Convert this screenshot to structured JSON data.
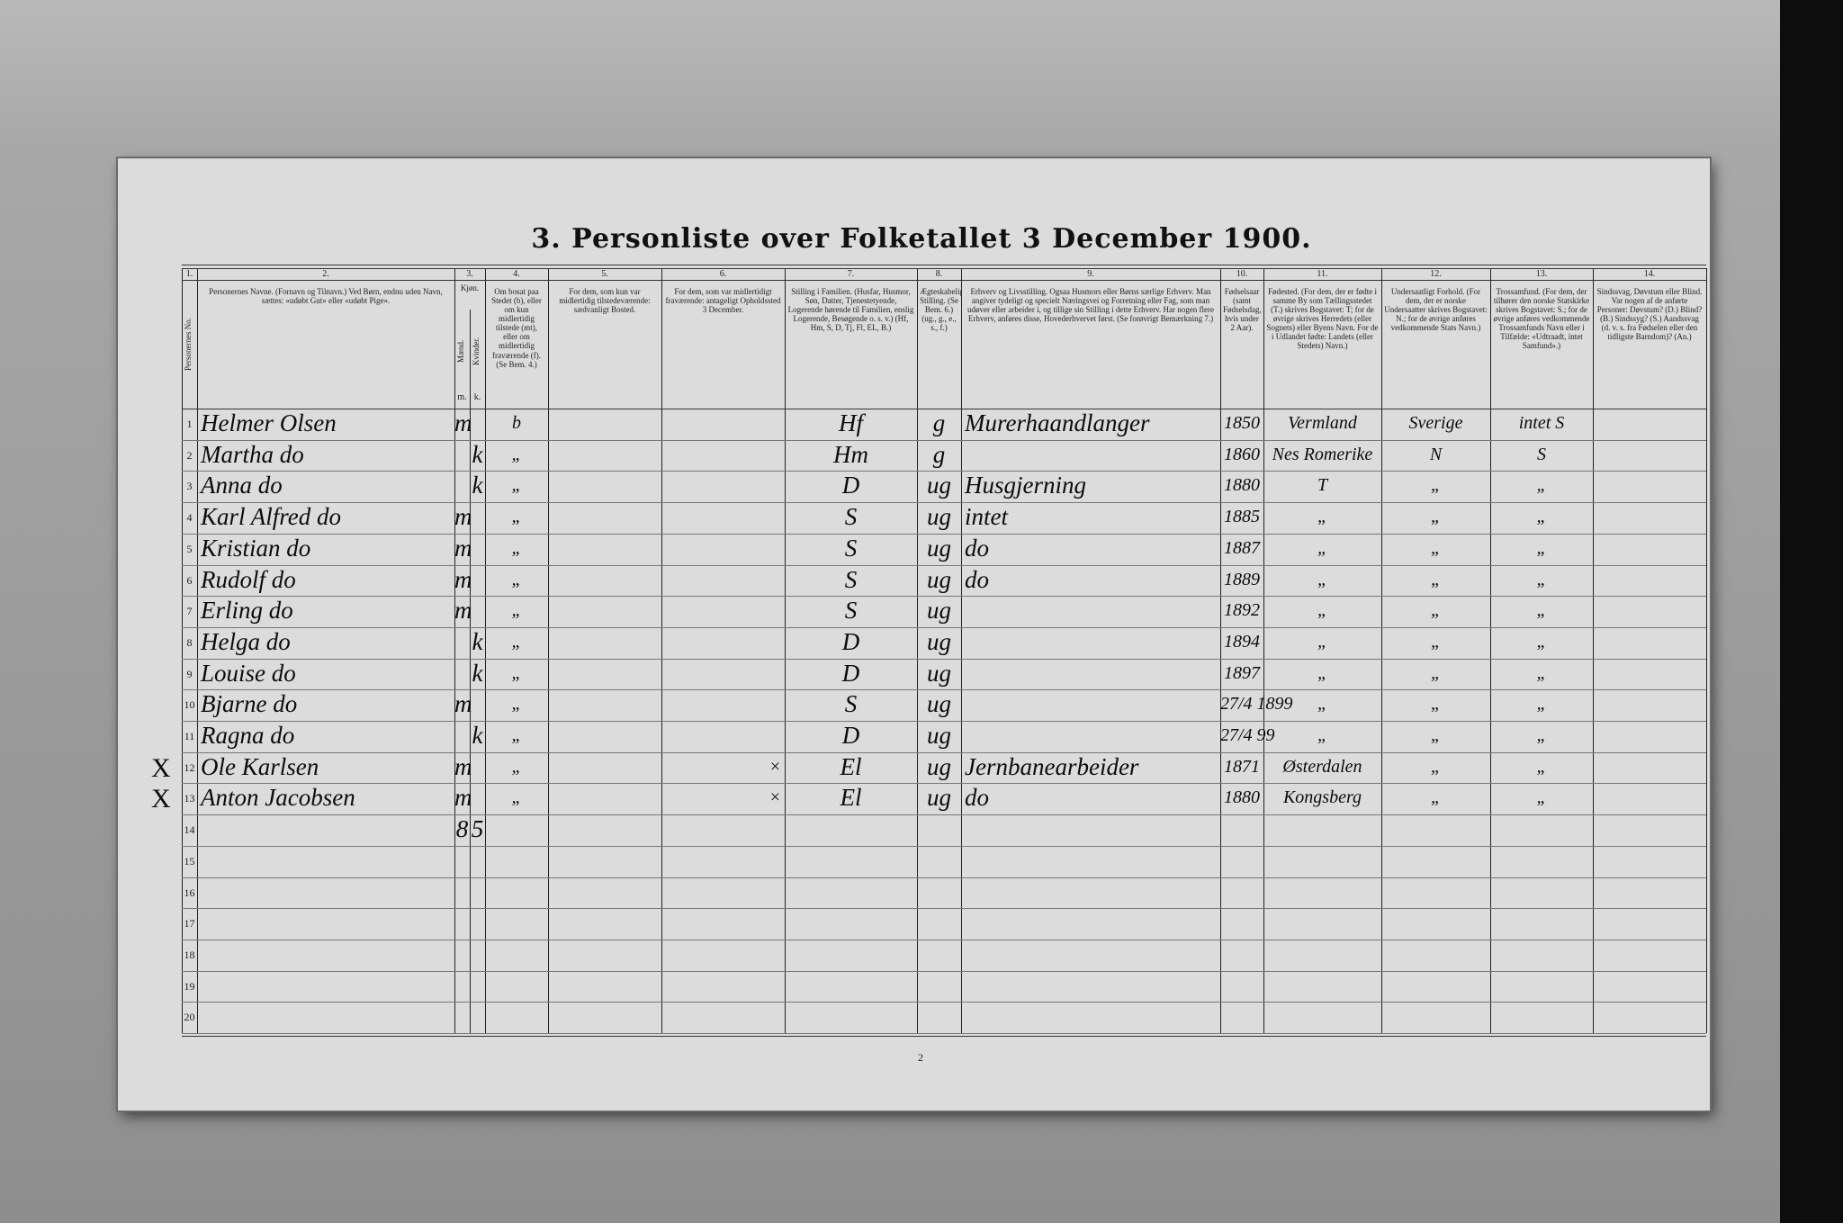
{
  "title": "3. Personliste over Folketallet 3 December 1900.",
  "page_number": "2",
  "columns": [
    {
      "num": "1.",
      "header": "Personernes No."
    },
    {
      "num": "2.",
      "header": "Personernes Navne. (Fornavn og Tilnavn.) Ved Børn, endnu uden Navn, sættes: «udøbt Gut» eller «udøbt Pige»."
    },
    {
      "num": "3.",
      "header": "Kjøn.",
      "sub": [
        {
          "label": "Mænd.",
          "short": "m."
        },
        {
          "label": "Kvinder.",
          "short": "k."
        }
      ]
    },
    {
      "num": "4.",
      "header": "Om bosat paa Stedet (b), eller om kun midlertidig tilstede (mt), eller om midlertidig fraværende (f). (Se Bem. 4.)"
    },
    {
      "num": "5.",
      "header": "For dem, som kun var midlertidig tilstedeværende: sædvanligt Bosted."
    },
    {
      "num": "6.",
      "header": "For dem, som var midlertidigt fraværende: antageligt Opholdssted 3 December."
    },
    {
      "num": "7.",
      "header": "Stilling i Familien. (Husfar, Husmor, Søn, Datter, Tjenestetyende, Logerende hørende til Familien, enslig Logerende, Besøgende o. s. v.) (Hf, Hm, S, D, Tj, Fl, EL, B.)"
    },
    {
      "num": "8.",
      "header": "Ægteskabelig Stilling. (Se Bem. 6.) (ug., g., e., s., f.)"
    },
    {
      "num": "9.",
      "header": "Erhverv og Livsstilling. Ogsaa Husmors eller Børns særlige Erhverv. Man angiver tydeligt og specielt Næringsvei og Forretning eller Fag, som man udøver eller arbeider i, og tillige sin Stilling i dette Erhverv. Har nogen flere Erhverv, anføres disse, Hovederhvervet først. (Se forøvrigt Bemærkning 7.)"
    },
    {
      "num": "10.",
      "header": "Fødselsaar (samt Fødselsdag, hvis under 2 Aar)."
    },
    {
      "num": "11.",
      "header": "Fødested. (For dem, der er fødte i samme By som Tællingsstedet (T.) skrives Bogstavet: T; for de øvrige skrives Herredets (eller Sognets) eller Byens Navn. For de i Udlandet fødte: Landets (eller Stedets) Navn.)"
    },
    {
      "num": "12.",
      "header": "Undersaatligt Forhold. (For dem, der er norske Undersaatter skrives Bogstavet: N.; for de øvrige anføres vedkommende Stats Navn.)"
    },
    {
      "num": "13.",
      "header": "Trossamfund. (For dem, der tilhører den norske Statskirke skrives Bogstavet: S.; for de øvrige anføres vedkommende Trossamfunds Navn eller i Tilfælde: «Udtraadt, intet Samfund».)"
    },
    {
      "num": "14.",
      "header": "Sindssvag, Døvstum eller Blind. Var nogen af de anførte Personer: Døvstum? (D.) Blind? (B.) Sindssyg? (S.) Aandssvag (d. v. s. fra Fødselen eller den tidligste Barndom)? (An.)"
    }
  ],
  "rows": [
    {
      "no": "1",
      "name": "Helmer Olsen",
      "m": "m",
      "res": "b",
      "fam": "Hf",
      "mar": "g",
      "occ": "Murerhaandlanger",
      "born": "1850",
      "birthplace": "Vermland",
      "nat": "Sverige",
      "faith": "intet S"
    },
    {
      "no": "2",
      "name": "Martha do",
      "k": "k",
      "res": "„",
      "fam": "Hm",
      "mar": "g",
      "born": "1860",
      "birthplace": "Nes Romerike",
      "nat": "N",
      "faith": "S"
    },
    {
      "no": "3",
      "name": "Anna do",
      "k": "k",
      "res": "„",
      "fam": "D",
      "mar": "ug",
      "occ": "Husgjerning",
      "born": "1880",
      "birthplace": "T",
      "nat": "„",
      "faith": "„"
    },
    {
      "no": "4",
      "name": "Karl Alfred do",
      "m": "m",
      "res": "„",
      "fam": "S",
      "mar": "ug",
      "occ": "intet",
      "born": "1885",
      "birthplace": "„",
      "nat": "„",
      "faith": "„"
    },
    {
      "no": "5",
      "name": "Kristian do",
      "m": "m",
      "res": "„",
      "fam": "S",
      "mar": "ug",
      "occ": "do",
      "born": "1887",
      "birthplace": "„",
      "nat": "„",
      "faith": "„"
    },
    {
      "no": "6",
      "name": "Rudolf do",
      "m": "m",
      "res": "„",
      "fam": "S",
      "mar": "ug",
      "occ": "do",
      "born": "1889",
      "birthplace": "„",
      "nat": "„",
      "faith": "„"
    },
    {
      "no": "7",
      "name": "Erling do",
      "m": "m",
      "res": "„",
      "fam": "S",
      "mar": "ug",
      "born": "1892",
      "birthplace": "„",
      "nat": "„",
      "faith": "„"
    },
    {
      "no": "8",
      "name": "Helga do",
      "k": "k",
      "res": "„",
      "fam": "D",
      "mar": "ug",
      "born": "1894",
      "birthplace": "„",
      "nat": "„",
      "faith": "„"
    },
    {
      "no": "9",
      "name": "Louise do",
      "k": "k",
      "res": "„",
      "fam": "D",
      "mar": "ug",
      "born": "1897",
      "birthplace": "„",
      "nat": "„",
      "faith": "„"
    },
    {
      "no": "10",
      "name": "Bjarne do",
      "m": "m",
      "res": "„",
      "fam": "S",
      "mar": "ug",
      "born": "27/4 1899",
      "birthplace": "„",
      "nat": "„",
      "faith": "„"
    },
    {
      "no": "11",
      "name": "Ragna do",
      "k": "k",
      "res": "„",
      "fam": "D",
      "mar": "ug",
      "born": "27/4 99",
      "birthplace": "„",
      "nat": "„",
      "faith": "„"
    },
    {
      "no": "12",
      "margin": "X",
      "name": "Ole Karlsen",
      "m": "m",
      "res": "„",
      "c6": "×",
      "fam": "El",
      "mar": "ug",
      "occ": "Jernbanearbeider",
      "born": "1871",
      "birthplace": "Østerdalen",
      "nat": "„",
      "faith": "„"
    },
    {
      "no": "13",
      "margin": "X",
      "name": "Anton Jacobsen",
      "m": "m",
      "res": "„",
      "c6": "×",
      "fam": "El",
      "mar": "ug",
      "occ": "do",
      "born": "1880",
      "birthplace": "Kongsberg",
      "nat": "„",
      "faith": "„"
    },
    {
      "no": "14",
      "m": "8",
      "k": "5"
    },
    {
      "no": "15"
    },
    {
      "no": "16"
    },
    {
      "no": "17"
    },
    {
      "no": "18"
    },
    {
      "no": "19"
    },
    {
      "no": "20"
    }
  ]
}
